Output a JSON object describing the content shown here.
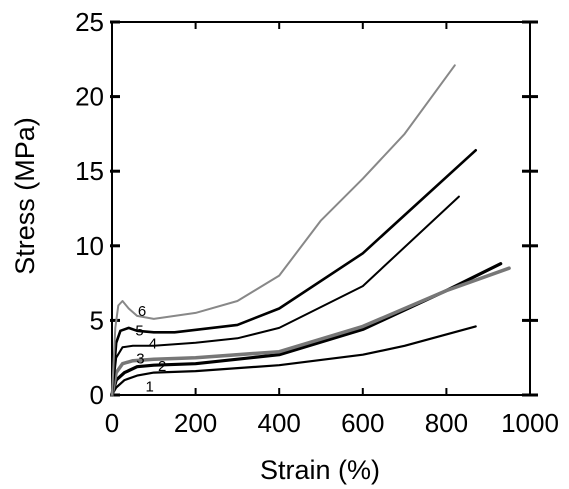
{
  "chart_data": {
    "type": "line",
    "title": "",
    "xlabel": "Strain (%)",
    "ylabel": "Stress (MPa)",
    "xlim": [
      0,
      1000
    ],
    "ylim": [
      0,
      25
    ],
    "x_ticks": [
      "0",
      "200",
      "400",
      "600",
      "800",
      "1000"
    ],
    "y_ticks": [
      "0",
      "5",
      "10",
      "15",
      "20",
      "25"
    ],
    "grid": false,
    "legend": "none",
    "series": [
      {
        "name": "1",
        "color": "#000000",
        "x": [
          0,
          10,
          30,
          60,
          100,
          200,
          400,
          600,
          700,
          870
        ],
        "y": [
          0,
          0.5,
          1.0,
          1.3,
          1.5,
          1.6,
          2.0,
          2.7,
          3.3,
          4.6
        ]
      },
      {
        "name": "2",
        "color": "#000000",
        "x": [
          0,
          10,
          30,
          60,
          100,
          200,
          400,
          600,
          800,
          930
        ],
        "y": [
          0,
          1.0,
          1.5,
          1.9,
          2.0,
          2.1,
          2.7,
          4.4,
          7.0,
          8.8
        ]
      },
      {
        "name": "3",
        "color": "#777777",
        "x": [
          0,
          10,
          25,
          50,
          100,
          200,
          400,
          600,
          800,
          950
        ],
        "y": [
          0,
          1.5,
          2.1,
          2.3,
          2.4,
          2.5,
          2.9,
          4.6,
          7.0,
          8.5
        ]
      },
      {
        "name": "4",
        "color": "#000000",
        "x": [
          0,
          10,
          25,
          50,
          100,
          200,
          300,
          400,
          600,
          830
        ],
        "y": [
          0,
          2.5,
          3.2,
          3.3,
          3.3,
          3.5,
          3.8,
          4.5,
          7.3,
          13.3
        ]
      },
      {
        "name": "5",
        "color": "#000000",
        "x": [
          0,
          10,
          20,
          40,
          60,
          100,
          150,
          300,
          400,
          600,
          870
        ],
        "y": [
          0,
          3.5,
          4.3,
          4.5,
          4.3,
          4.2,
          4.2,
          4.7,
          5.8,
          9.5,
          16.4
        ]
      },
      {
        "name": "6",
        "color": "#888888",
        "x": [
          0,
          8,
          15,
          25,
          40,
          60,
          100,
          200,
          300,
          400,
          500,
          600,
          700,
          820
        ],
        "y": [
          0,
          4.5,
          6.0,
          6.3,
          5.8,
          5.3,
          5.1,
          5.5,
          6.3,
          8.0,
          11.7,
          14.5,
          17.5,
          22.1
        ]
      }
    ]
  }
}
